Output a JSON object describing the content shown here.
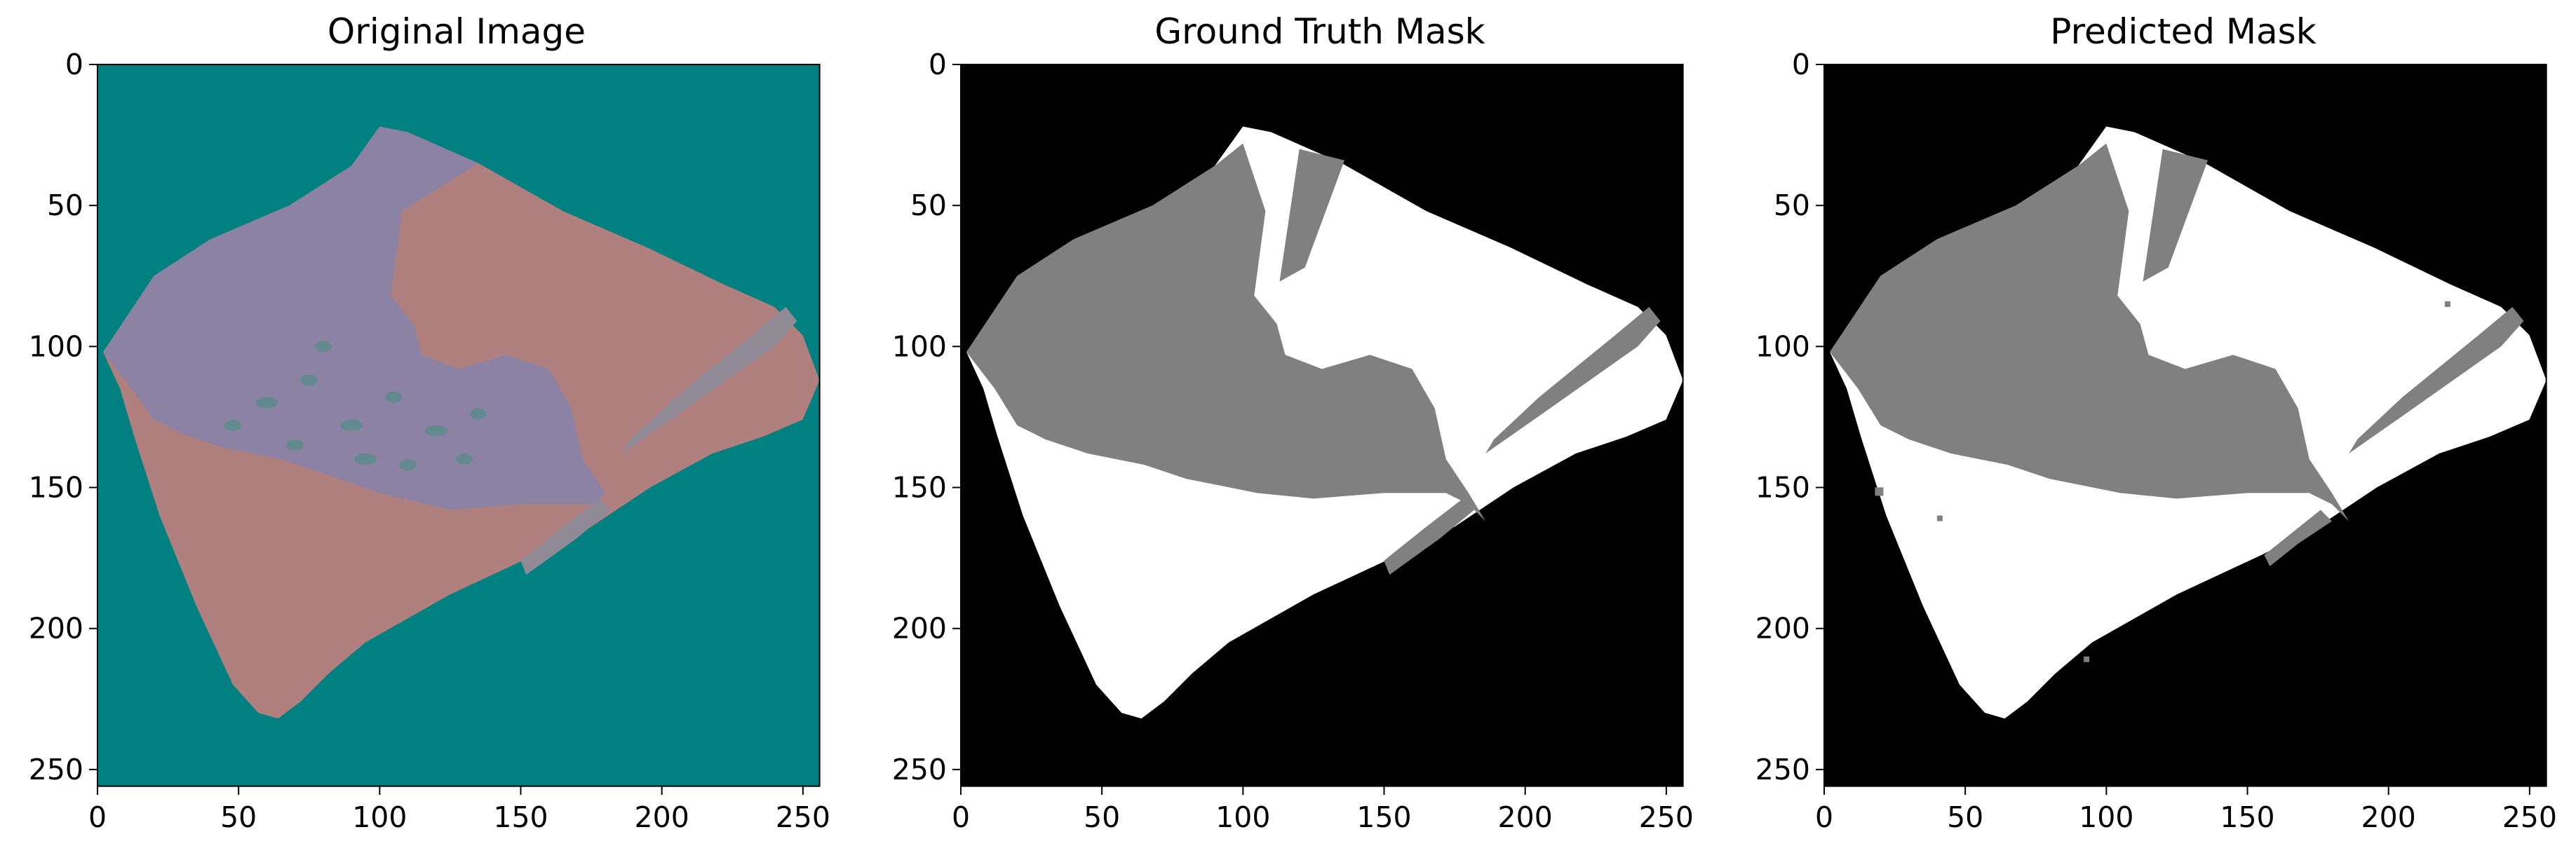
{
  "panels": [
    {
      "title": "Original Image",
      "kind": "image",
      "colors": {
        "background": "#008080",
        "tissue_red": "#b0807e",
        "tissue_purple": "#8c82a4",
        "detail": "#5a8c8a"
      }
    },
    {
      "title": "Ground Truth Mask",
      "kind": "mask",
      "colors": {
        "background": "#000000",
        "white_region": "#ffffff",
        "gray_region": "#808080"
      }
    },
    {
      "title": "Predicted Mask",
      "kind": "mask",
      "colors": {
        "background": "#000000",
        "white_region": "#ffffff",
        "gray_region": "#808080"
      }
    }
  ],
  "axes": {
    "x_ticks": [
      "0",
      "50",
      "100",
      "150",
      "200",
      "250"
    ],
    "y_ticks": [
      "0",
      "50",
      "100",
      "150",
      "200",
      "250"
    ],
    "xlim": [
      0,
      256
    ],
    "ylim": [
      256,
      0
    ]
  }
}
